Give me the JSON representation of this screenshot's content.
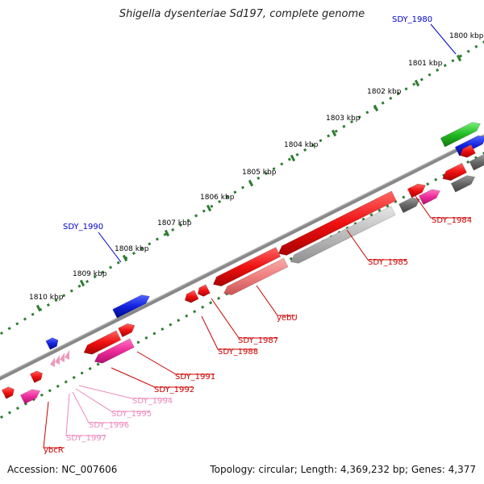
{
  "title": "Shigella dysenteriae Sd197, complete genome",
  "footer": {
    "accession": "Accession: NC_007606",
    "summary": "Topology: circular; Length: 4,369,232 bp; Genes: 4,377"
  },
  "ruler_labels": [
    "1800 kbp",
    "1801 kbp",
    "1802 kbp",
    "1803 kbp",
    "1804 kbp",
    "1805 kbp",
    "1806 kbp",
    "1807 kbp",
    "1808 kbp",
    "1809 kbp",
    "1810 kbp"
  ],
  "gene_labels": [
    "SDY_1980",
    "SDY_1990",
    "SDY_1984",
    "SDY_1985",
    "yebU",
    "SDY_1987",
    "SDY_1988",
    "SDY_1991",
    "SDY_1992",
    "SDY_1994",
    "SDY_1995",
    "SDY_1996",
    "SDY_1997",
    "ybcR"
  ],
  "colors": {
    "backbone": "#888888",
    "tick": "#2e7d32",
    "cds": "#ee1111",
    "cds_light": "#f08080",
    "gene_magenta": "#ee2a9a",
    "gene_green": "#22bb22",
    "gene_blue": "#1122dd",
    "gene_gray": "#777777",
    "gene_lightgray": "#bbbbbb",
    "pseudo_pink": "#ee99bb",
    "label_red": "#cc0000",
    "label_blue": "#0000cc",
    "label_pink": "#ee88bb"
  }
}
